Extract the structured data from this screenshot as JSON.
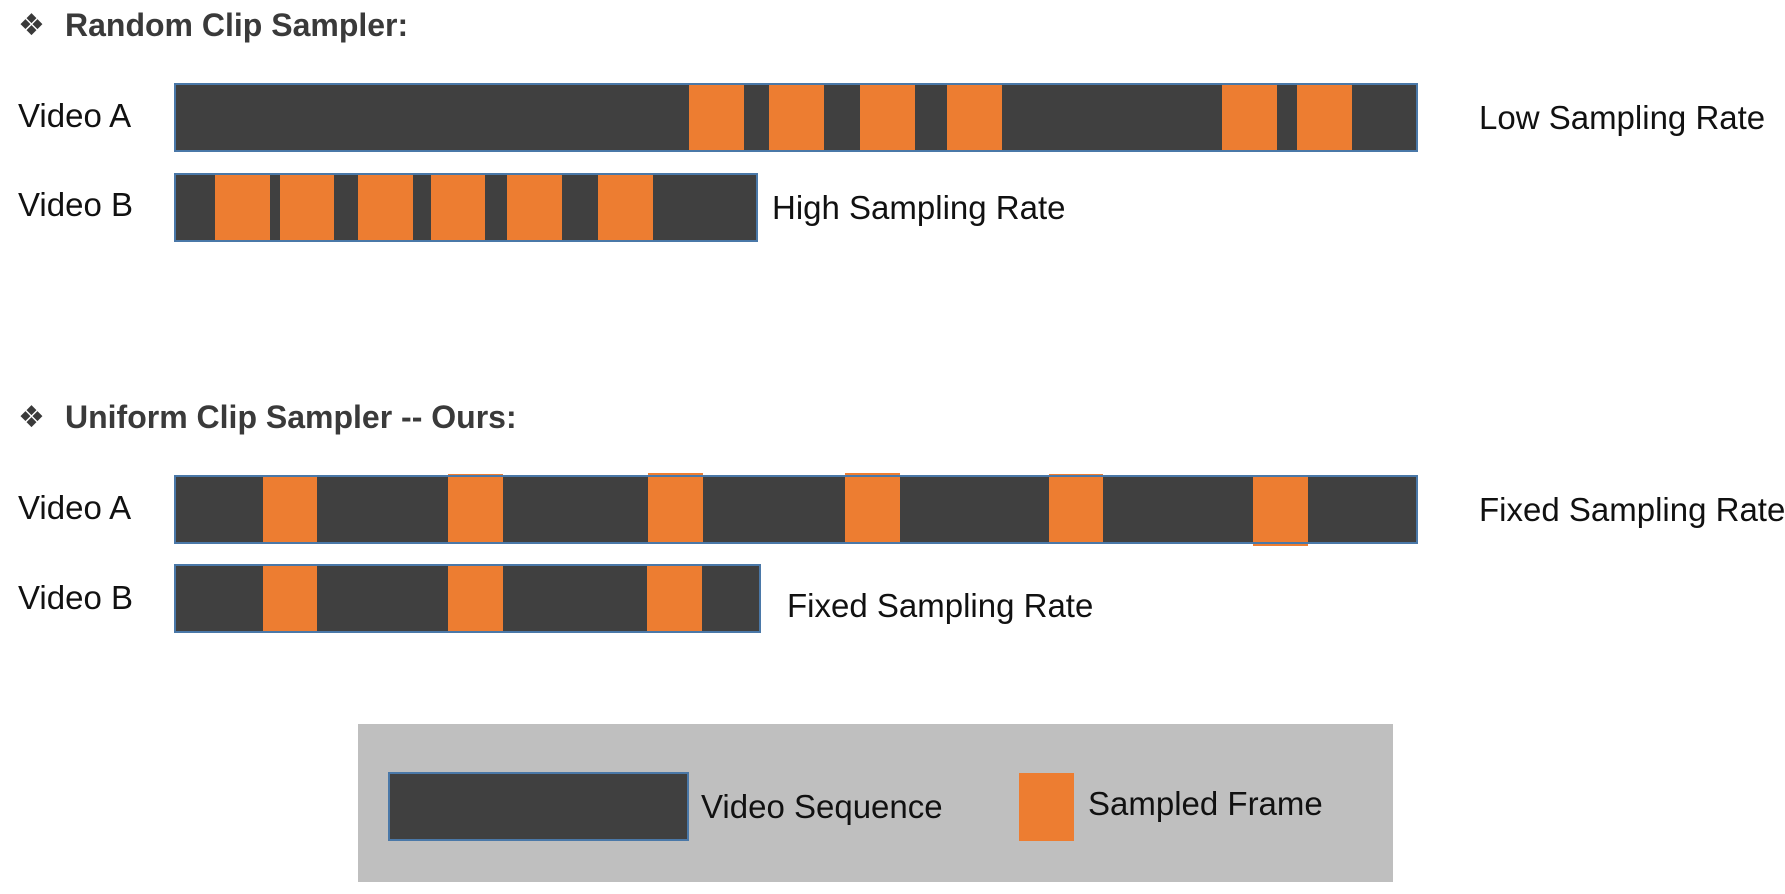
{
  "colors": {
    "video_sequence": "#404040",
    "sampled_frame": "#ED7D31",
    "bar_border": "#4A78A8",
    "legend_bg": "#BFBFBF"
  },
  "sections": [
    {
      "title": "Random Clip Sampler:",
      "rows": [
        {
          "label": "Video A",
          "rate_label": "Low Sampling Rate"
        },
        {
          "label": "Video B",
          "rate_label": "High Sampling Rate"
        }
      ]
    },
    {
      "title": "Uniform Clip Sampler -- Ours:",
      "rows": [
        {
          "label": "Video A",
          "rate_label": "Fixed Sampling Rate"
        },
        {
          "label": "Video B",
          "rate_label": "Fixed Sampling Rate"
        }
      ]
    }
  ],
  "legend": {
    "video_sequence_label": "Video Sequence",
    "sampled_frame_label": "Sampled Frame"
  },
  "bullet_icon": "four-diamond-bullet-icon"
}
